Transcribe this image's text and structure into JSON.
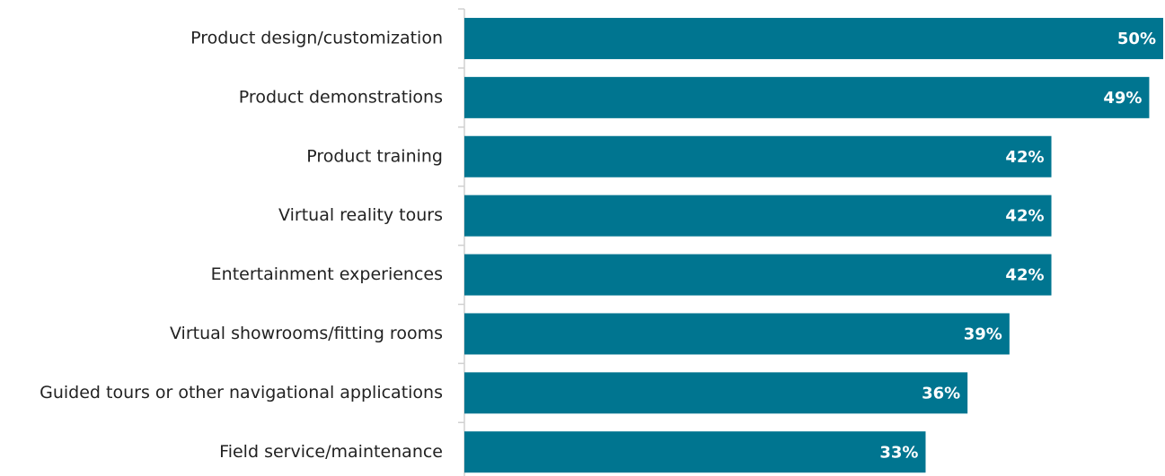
{
  "chart_data": {
    "type": "barh",
    "categories": [
      "Product design/customization",
      "Product demonstrations",
      "Product training",
      "Virtual reality tours",
      "Entertainment experiences",
      "Virtual showrooms/fitting rooms",
      "Guided tours or other navigational applications",
      "Field service/maintenance"
    ],
    "values": [
      50,
      49,
      42,
      42,
      42,
      39,
      36,
      33
    ],
    "value_labels": [
      "50%",
      "49%",
      "42%",
      "42%",
      "42%",
      "39%",
      "36%",
      "33%"
    ],
    "color": "#007590",
    "xlim": [
      0,
      50
    ]
  }
}
